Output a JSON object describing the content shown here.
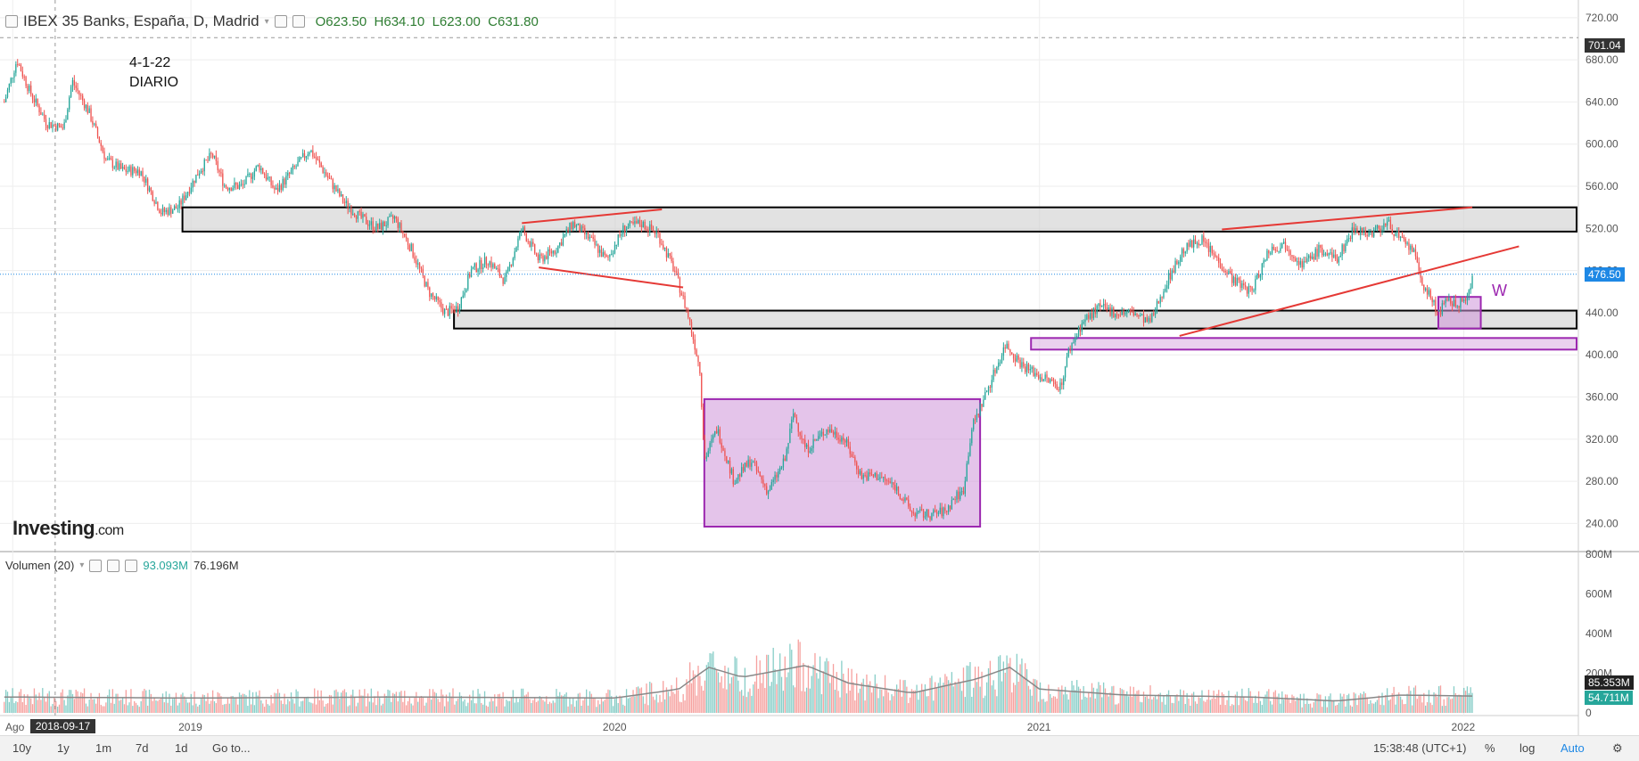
{
  "header": {
    "symbol": "IBEX 35 Banks, España, D, Madrid",
    "open": "O623.50",
    "high": "H634.10",
    "low": "L623.00",
    "close": "C631.80"
  },
  "note": {
    "line1": "4-1-22",
    "line2": "DIARIO"
  },
  "annotation_w": "W",
  "volume": {
    "label": "Volumen (20)",
    "value1": "93.093M",
    "value2": "76.196M"
  },
  "brand": {
    "name": "Investing",
    "suffix": ".com"
  },
  "crosshair": {
    "date": "2018-09-17",
    "price": "701.04"
  },
  "last_price": "476.50",
  "vol_badges": {
    "ma": "85.353M",
    "vol": "54.711M"
  },
  "bottom": {
    "ranges": [
      "10y",
      "1y",
      "1m",
      "7d",
      "1d",
      "Go to..."
    ],
    "time": "15:38:48 (UTC+1)",
    "percent": "%",
    "log": "log",
    "auto": "Auto"
  },
  "colors": {
    "up": "#26a69a",
    "down": "#ef5350",
    "box_purple": "#9c27b0",
    "trend_red": "#e53935",
    "grid": "#eeeeee"
  },
  "chart_data": {
    "type": "candlestick",
    "x_ticks": [
      "Ago",
      "2019",
      "2020",
      "2021",
      "2022"
    ],
    "price_ticks": [
      240,
      280,
      320,
      360,
      400,
      440,
      480,
      520,
      560,
      600,
      640,
      680,
      720
    ],
    "price_range": [
      215,
      730
    ],
    "volume_ticks": [
      "0",
      "200M",
      "400M",
      "600M",
      "800M"
    ],
    "volume_range_M": [
      0,
      800
    ],
    "time_range": [
      2018.55,
      2022.27
    ],
    "price_path": [
      [
        2018.56,
        640
      ],
      [
        2018.59,
        680
      ],
      [
        2018.62,
        650
      ],
      [
        2018.66,
        620
      ],
      [
        2018.7,
        615
      ],
      [
        2018.72,
        660
      ],
      [
        2018.76,
        630
      ],
      [
        2018.8,
        585
      ],
      [
        2018.84,
        575
      ],
      [
        2018.88,
        575
      ],
      [
        2018.93,
        535
      ],
      [
        2018.97,
        540
      ],
      [
        2019.02,
        575
      ],
      [
        2019.05,
        590
      ],
      [
        2019.08,
        560
      ],
      [
        2019.12,
        560
      ],
      [
        2019.16,
        580
      ],
      [
        2019.2,
        555
      ],
      [
        2019.24,
        575
      ],
      [
        2019.28,
        595
      ],
      [
        2019.32,
        570
      ],
      [
        2019.36,
        545
      ],
      [
        2019.4,
        530
      ],
      [
        2019.44,
        520
      ],
      [
        2019.48,
        530
      ],
      [
        2019.52,
        500
      ],
      [
        2019.56,
        460
      ],
      [
        2019.6,
        440
      ],
      [
        2019.63,
        445
      ],
      [
        2019.66,
        480
      ],
      [
        2019.7,
        490
      ],
      [
        2019.74,
        470
      ],
      [
        2019.78,
        520
      ],
      [
        2019.82,
        490
      ],
      [
        2019.86,
        500
      ],
      [
        2019.9,
        525
      ],
      [
        2019.94,
        510
      ],
      [
        2019.98,
        490
      ],
      [
        2020.02,
        520
      ],
      [
        2020.06,
        525
      ],
      [
        2020.1,
        515
      ],
      [
        2020.14,
        480
      ],
      [
        2020.17,
        440
      ],
      [
        2020.19,
        405
      ],
      [
        2020.2,
        385
      ],
      [
        2020.21,
        300
      ],
      [
        2020.24,
        330
      ],
      [
        2020.28,
        280
      ],
      [
        2020.32,
        300
      ],
      [
        2020.36,
        270
      ],
      [
        2020.4,
        300
      ],
      [
        2020.42,
        345
      ],
      [
        2020.45,
        310
      ],
      [
        2020.5,
        330
      ],
      [
        2020.54,
        320
      ],
      [
        2020.58,
        285
      ],
      [
        2020.62,
        285
      ],
      [
        2020.66,
        275
      ],
      [
        2020.7,
        250
      ],
      [
        2020.74,
        248
      ],
      [
        2020.78,
        252
      ],
      [
        2020.8,
        265
      ],
      [
        2020.82,
        270
      ],
      [
        2020.84,
        330
      ],
      [
        2020.88,
        370
      ],
      [
        2020.92,
        410
      ],
      [
        2020.96,
        390
      ],
      [
        2021.0,
        380
      ],
      [
        2021.05,
        370
      ],
      [
        2021.07,
        405
      ],
      [
        2021.1,
        430
      ],
      [
        2021.14,
        445
      ],
      [
        2021.18,
        440
      ],
      [
        2021.22,
        440
      ],
      [
        2021.26,
        430
      ],
      [
        2021.3,
        470
      ],
      [
        2021.34,
        500
      ],
      [
        2021.38,
        510
      ],
      [
        2021.42,
        490
      ],
      [
        2021.46,
        470
      ],
      [
        2021.5,
        460
      ],
      [
        2021.54,
        500
      ],
      [
        2021.58,
        505
      ],
      [
        2021.62,
        485
      ],
      [
        2021.66,
        500
      ],
      [
        2021.7,
        490
      ],
      [
        2021.74,
        520
      ],
      [
        2021.78,
        515
      ],
      [
        2021.82,
        525
      ],
      [
        2021.86,
        505
      ],
      [
        2021.88,
        500
      ],
      [
        2021.9,
        470
      ],
      [
        2021.92,
        455
      ],
      [
        2021.94,
        440
      ],
      [
        2021.96,
        450
      ],
      [
        2021.99,
        448
      ],
      [
        2022.01,
        455
      ],
      [
        2022.02,
        476.5
      ]
    ],
    "volume_ma_path": [
      [
        2018.56,
        80
      ],
      [
        2019.0,
        75
      ],
      [
        2019.5,
        80
      ],
      [
        2020.0,
        75
      ],
      [
        2020.15,
        120
      ],
      [
        2020.22,
        230
      ],
      [
        2020.3,
        180
      ],
      [
        2020.45,
        240
      ],
      [
        2020.55,
        150
      ],
      [
        2020.7,
        100
      ],
      [
        2020.85,
        170
      ],
      [
        2020.93,
        230
      ],
      [
        2021.0,
        120
      ],
      [
        2021.2,
        90
      ],
      [
        2021.5,
        80
      ],
      [
        2021.7,
        60
      ],
      [
        2021.85,
        90
      ],
      [
        2022.02,
        85
      ]
    ],
    "horizontal_zones": [
      {
        "type": "resistance",
        "from": 2018.98,
        "to": 2022.27,
        "low": 517,
        "high": 540
      },
      {
        "type": "support",
        "from": 2019.62,
        "to": 2022.27,
        "low": 425,
        "high": 442
      },
      {
        "type": "support-purple",
        "from": 2020.98,
        "to": 2022.27,
        "low": 405,
        "high": 416
      },
      {
        "type": "consolidation",
        "from": 2020.21,
        "to": 2020.86,
        "low": 237,
        "high": 358
      },
      {
        "type": "consolidation",
        "from": 2021.94,
        "to": 2022.04,
        "low": 425,
        "high": 455
      }
    ],
    "trend_lines": [
      {
        "from": [
          2019.78,
          525
        ],
        "to": [
          2020.11,
          538
        ]
      },
      {
        "from": [
          2019.82,
          483
        ],
        "to": [
          2020.16,
          464
        ]
      },
      {
        "from": [
          2021.43,
          519
        ],
        "to": [
          2022.02,
          540
        ]
      },
      {
        "from": [
          2021.33,
          418
        ],
        "to": [
          2022.13,
          503
        ]
      }
    ],
    "grid": true,
    "crosshair": {
      "x": 2018.68,
      "price": 701.04
    }
  }
}
